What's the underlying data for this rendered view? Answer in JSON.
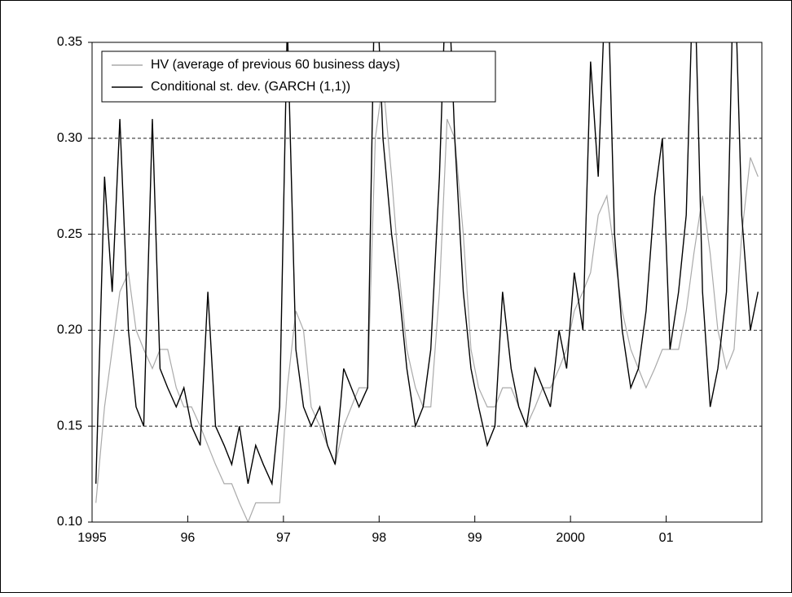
{
  "chart_data": {
    "type": "line",
    "x": [
      1995.04,
      1995.13,
      1995.21,
      1995.29,
      1995.38,
      1995.46,
      1995.54,
      1995.63,
      1995.71,
      1995.79,
      1995.88,
      1995.96,
      1996.04,
      1996.13,
      1996.21,
      1996.29,
      1996.38,
      1996.46,
      1996.54,
      1996.63,
      1996.71,
      1996.79,
      1996.88,
      1996.96,
      1997.04,
      1997.13,
      1997.21,
      1997.29,
      1997.38,
      1997.46,
      1997.54,
      1997.63,
      1997.71,
      1997.79,
      1997.88,
      1997.96,
      1998.04,
      1998.13,
      1998.21,
      1998.29,
      1998.38,
      1998.46,
      1998.54,
      1998.63,
      1998.71,
      1998.79,
      1998.88,
      1998.96,
      1999.04,
      1999.13,
      1999.21,
      1999.29,
      1999.38,
      1999.46,
      1999.54,
      1999.63,
      1999.71,
      1999.79,
      1999.88,
      1999.96,
      2000.04,
      2000.13,
      2000.21,
      2000.29,
      2000.38,
      2000.46,
      2000.54,
      2000.63,
      2000.71,
      2000.79,
      2000.88,
      2000.96,
      2001.04,
      2001.13,
      2001.21,
      2001.29,
      2001.38,
      2001.46,
      2001.54,
      2001.63,
      2001.71,
      2001.79,
      2001.88,
      2001.96
    ],
    "series": [
      {
        "name": "HV (average of previous 60 business days)",
        "color": "#aaaaaa",
        "values": [
          0.11,
          0.16,
          0.19,
          0.22,
          0.23,
          0.2,
          0.19,
          0.18,
          0.19,
          0.19,
          0.17,
          0.16,
          0.16,
          0.15,
          0.14,
          0.13,
          0.12,
          0.12,
          0.11,
          0.1,
          0.11,
          0.11,
          0.11,
          0.11,
          0.17,
          0.21,
          0.2,
          0.16,
          0.15,
          0.14,
          0.13,
          0.15,
          0.16,
          0.17,
          0.17,
          0.3,
          0.33,
          0.28,
          0.23,
          0.19,
          0.17,
          0.16,
          0.16,
          0.22,
          0.31,
          0.3,
          0.25,
          0.19,
          0.17,
          0.16,
          0.16,
          0.17,
          0.17,
          0.16,
          0.15,
          0.16,
          0.17,
          0.17,
          0.18,
          0.19,
          0.21,
          0.22,
          0.23,
          0.26,
          0.27,
          0.24,
          0.21,
          0.19,
          0.18,
          0.17,
          0.18,
          0.19,
          0.19,
          0.19,
          0.21,
          0.24,
          0.27,
          0.24,
          0.2,
          0.18,
          0.19,
          0.25,
          0.29,
          0.28
        ]
      },
      {
        "name": "Conditional st. dev. (GARCH (1,1))",
        "color": "#000000",
        "values": [
          0.12,
          0.28,
          0.22,
          0.31,
          0.2,
          0.16,
          0.15,
          0.31,
          0.18,
          0.17,
          0.16,
          0.17,
          0.15,
          0.14,
          0.22,
          0.15,
          0.14,
          0.13,
          0.15,
          0.12,
          0.14,
          0.13,
          0.12,
          0.16,
          0.36,
          0.19,
          0.16,
          0.15,
          0.16,
          0.14,
          0.13,
          0.18,
          0.17,
          0.16,
          0.17,
          0.4,
          0.3,
          0.25,
          0.22,
          0.18,
          0.15,
          0.16,
          0.19,
          0.28,
          0.4,
          0.3,
          0.22,
          0.18,
          0.16,
          0.14,
          0.15,
          0.22,
          0.18,
          0.16,
          0.15,
          0.18,
          0.17,
          0.16,
          0.2,
          0.18,
          0.23,
          0.2,
          0.34,
          0.28,
          0.4,
          0.25,
          0.2,
          0.17,
          0.18,
          0.21,
          0.27,
          0.3,
          0.19,
          0.22,
          0.26,
          0.4,
          0.22,
          0.16,
          0.18,
          0.22,
          0.4,
          0.26,
          0.2,
          0.22
        ]
      }
    ],
    "xlim": [
      1995,
      2002
    ],
    "xticks": [
      1995,
      {
        "value": 1996,
        "label": "96"
      },
      {
        "value": 1997,
        "label": "97"
      },
      {
        "value": 1998,
        "label": "98"
      },
      {
        "value": 1999,
        "label": "99"
      },
      2000,
      {
        "value": 2001,
        "label": "01"
      }
    ],
    "ylim": [
      0.1,
      0.35
    ],
    "yticks": [
      0.1,
      0.15,
      0.2,
      0.25,
      0.3,
      0.35
    ],
    "yticklabels": [
      "0.10",
      "0.15",
      "0.20",
      "0.25",
      "0.30",
      "0.35"
    ],
    "grid": true,
    "legend": "upper left"
  }
}
